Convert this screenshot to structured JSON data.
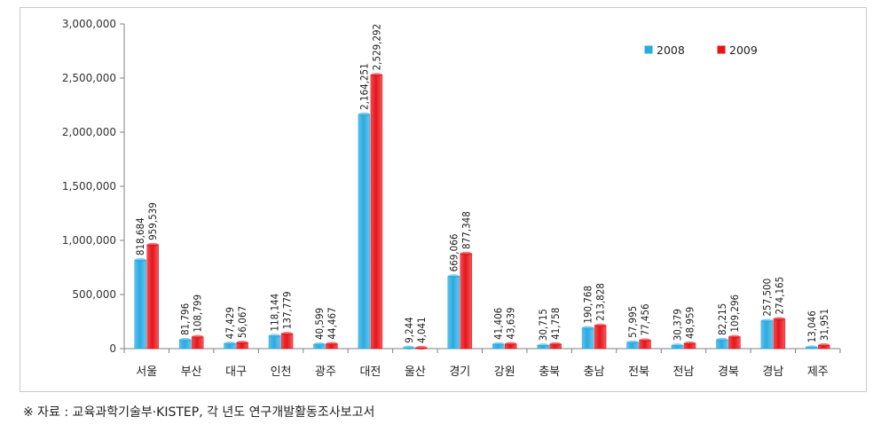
{
  "chart_data": {
    "type": "bar",
    "categories": [
      "서울",
      "부산",
      "대구",
      "인천",
      "광주",
      "대전",
      "울산",
      "경기",
      "강원",
      "충북",
      "충남",
      "전북",
      "전남",
      "경북",
      "경남",
      "제주"
    ],
    "series": [
      {
        "name": "2008",
        "color": "#29abe2",
        "values": [
          818684,
          81796,
          47429,
          118144,
          40599,
          2164251,
          9244,
          669066,
          41406,
          30715,
          190768,
          57995,
          30379,
          82215,
          257500,
          13046
        ]
      },
      {
        "name": "2009",
        "color": "#e8141a",
        "values": [
          959539,
          108799,
          56067,
          137779,
          44467,
          2529292,
          4041,
          877348,
          43639,
          41758,
          213828,
          77456,
          48959,
          109296,
          274165,
          31951
        ]
      }
    ],
    "ylim": [
      0,
      3000000
    ],
    "yticks": [
      0,
      500000,
      1000000,
      1500000,
      2000000,
      2500000,
      3000000
    ],
    "ytick_labels": [
      "0",
      "500,000",
      "1,000,000",
      "1,500,000",
      "2,000,000",
      "2,500,000",
      "3,000,000"
    ],
    "legend_position": "top-right",
    "grid": false
  },
  "source_note": "※ 자료 : 교육과학기술부·KISTEP, 각 년도 연구개발활동조사보고서"
}
